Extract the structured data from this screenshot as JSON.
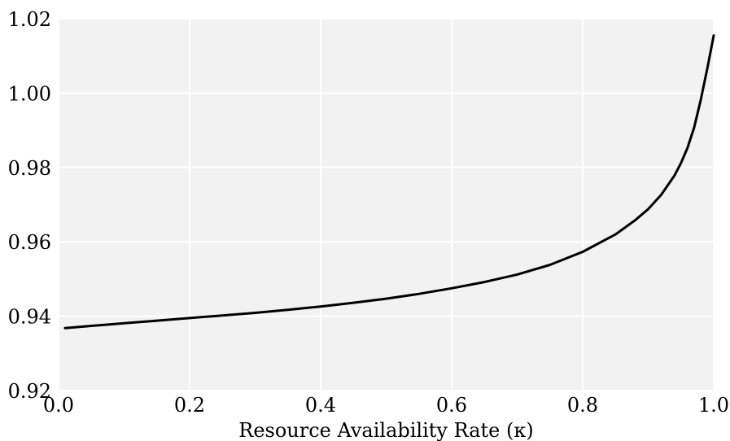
{
  "chart_data": {
    "type": "line",
    "title": "",
    "xlabel": "Resource Availability Rate (κ)",
    "ylabel": "",
    "xlim": [
      0.0,
      1.0
    ],
    "ylim": [
      0.92,
      1.02
    ],
    "xticks": [
      "0.0",
      "0.2",
      "0.4",
      "0.6",
      "0.8",
      "1.0"
    ],
    "yticks": [
      "0.92",
      "0.94",
      "0.96",
      "0.98",
      "1.00",
      "1.02"
    ],
    "grid": true,
    "legend": "none",
    "colors": {
      "plot_background": "#f2f2f2",
      "grid": "#ffffff",
      "line": "#000000"
    },
    "series": [
      {
        "x": [
          0.01,
          0.05,
          0.1,
          0.15,
          0.2,
          0.25,
          0.3,
          0.35,
          0.4,
          0.45,
          0.5,
          0.55,
          0.6,
          0.65,
          0.7,
          0.75,
          0.8,
          0.85,
          0.88,
          0.9,
          0.92,
          0.94,
          0.95,
          0.96,
          0.97,
          0.98,
          0.99,
          1.0
        ],
        "values": [
          0.9368,
          0.9374,
          0.9381,
          0.9388,
          0.9395,
          0.9402,
          0.9409,
          0.9417,
          0.9426,
          0.9436,
          0.9447,
          0.946,
          0.9475,
          0.9492,
          0.9512,
          0.9538,
          0.9573,
          0.962,
          0.9658,
          0.9688,
          0.9727,
          0.9778,
          0.9812,
          0.9853,
          0.9907,
          0.998,
          1.0065,
          1.0155
        ]
      }
    ]
  }
}
